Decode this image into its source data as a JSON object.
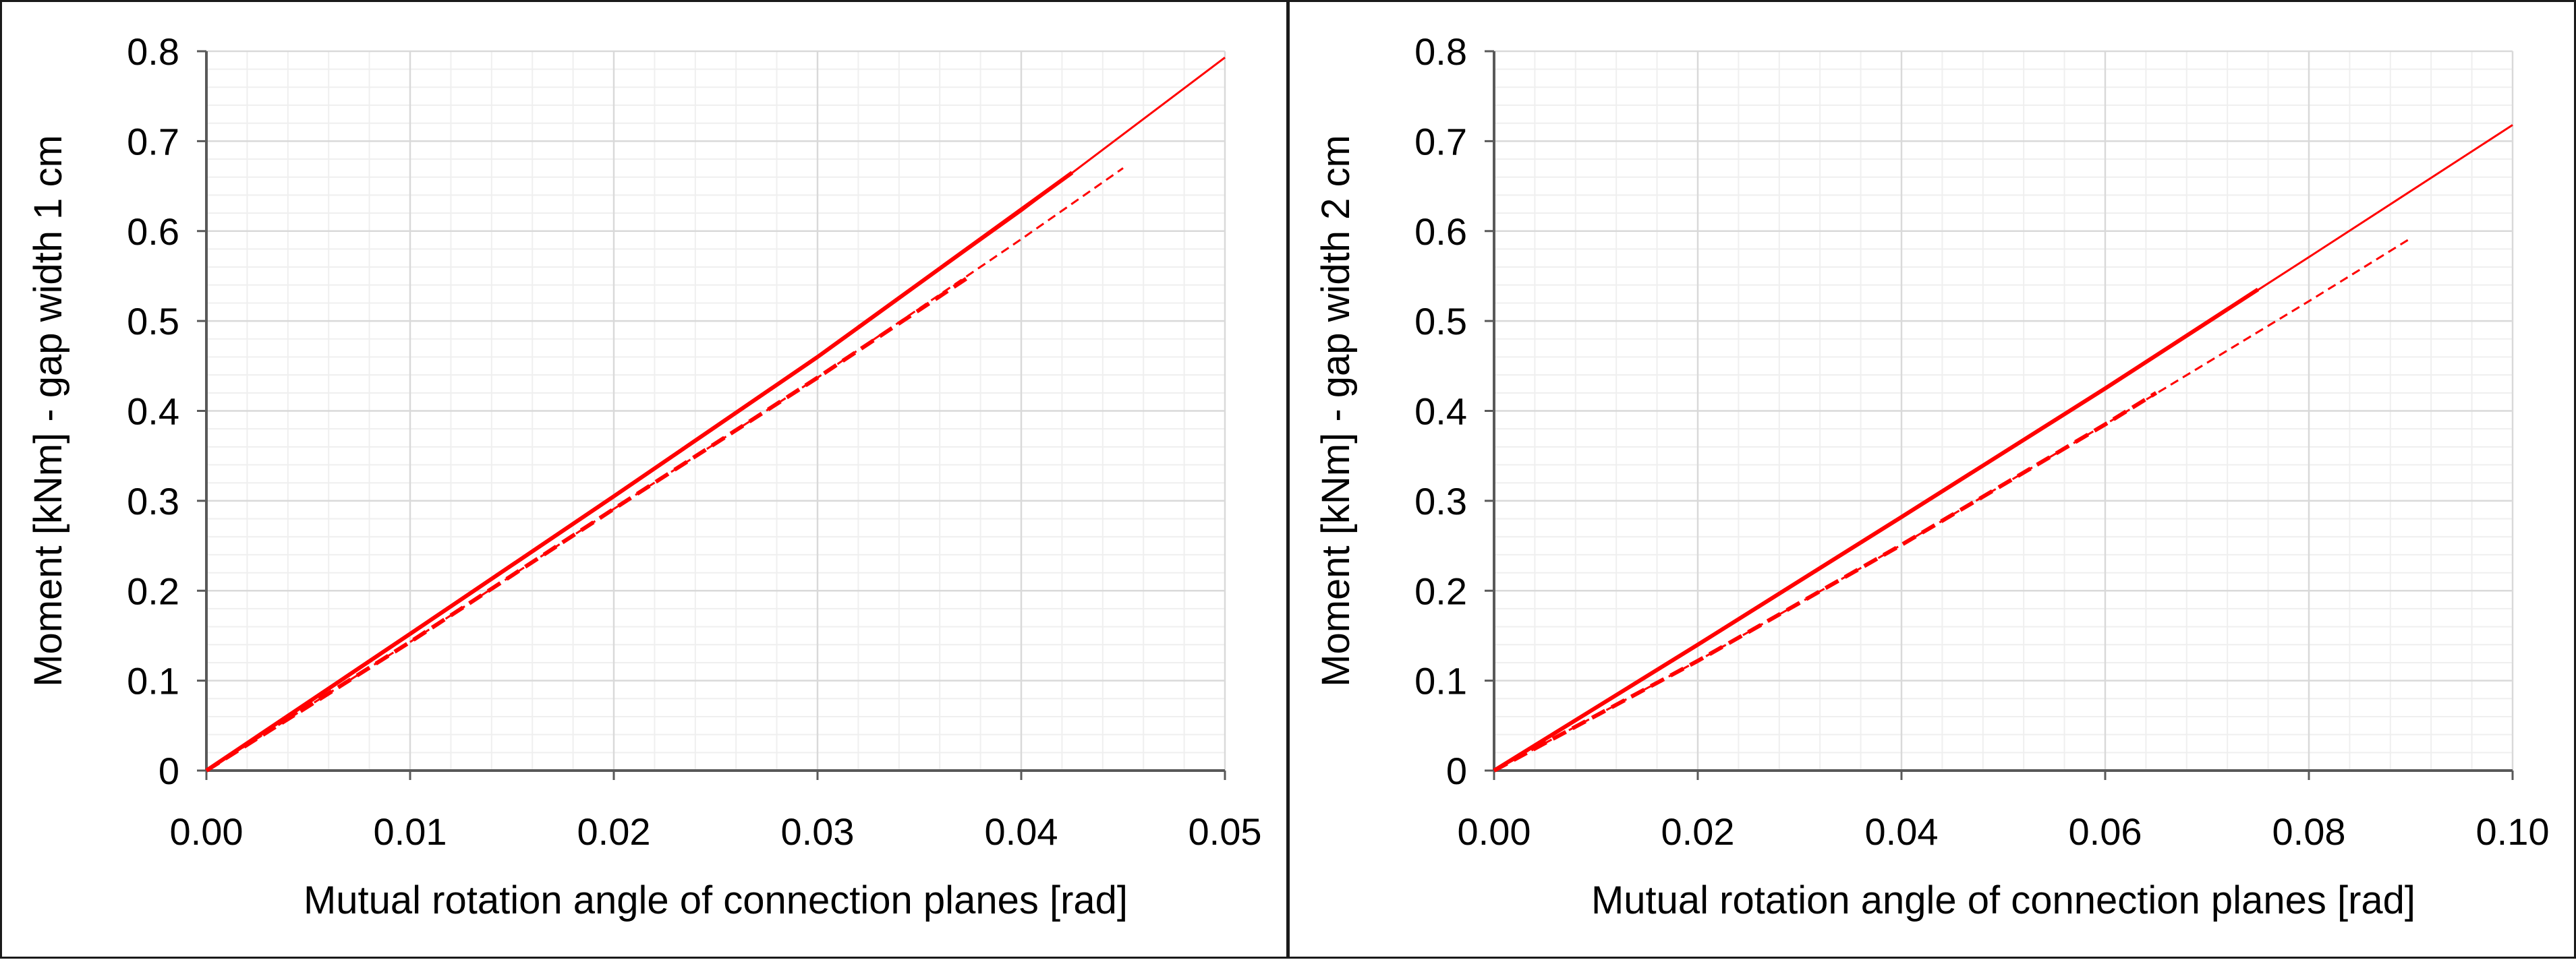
{
  "chart_data": [
    {
      "type": "line",
      "title": "",
      "xlabel": "Mutual rotation angle of connection planes [rad]",
      "ylabel": "Moment [kNm] - gap width 1 cm",
      "xlim": [
        0,
        0.05
      ],
      "ylim": [
        0,
        0.8
      ],
      "x_ticks": [
        "0.00",
        "0.01",
        "0.02",
        "0.03",
        "0.04",
        "0.05"
      ],
      "y_ticks": [
        "0",
        "0.1",
        "0.2",
        "0.3",
        "0.4",
        "0.5",
        "0.6",
        "0.7",
        "0.8"
      ],
      "grid": true,
      "legend": "none",
      "color": "#ff0000",
      "series": [
        {
          "name": "solid-thin",
          "style": "solid",
          "weight": "thin",
          "x": [
            0,
            0.01,
            0.02,
            0.03,
            0.04,
            0.05
          ],
          "y": [
            0,
            0.152,
            0.305,
            0.46,
            0.622,
            0.793
          ]
        },
        {
          "name": "solid-thick",
          "style": "solid",
          "weight": "thick",
          "x": [
            0,
            0.01,
            0.02,
            0.03,
            0.0425
          ],
          "y": [
            0,
            0.152,
            0.305,
            0.46,
            0.665
          ]
        },
        {
          "name": "dashed-thin",
          "style": "dashed",
          "weight": "thin",
          "x": [
            0,
            0.01,
            0.02,
            0.03,
            0.04,
            0.045
          ],
          "y": [
            0,
            0.143,
            0.291,
            0.437,
            0.591,
            0.67
          ]
        },
        {
          "name": "dashed-thick",
          "style": "dashed",
          "weight": "thick",
          "x": [
            0,
            0.01,
            0.02,
            0.03,
            0.0375
          ],
          "y": [
            0,
            0.143,
            0.291,
            0.437,
            0.55
          ]
        }
      ]
    },
    {
      "type": "line",
      "title": "",
      "xlabel": "Mutual rotation angle of connection planes [rad]",
      "ylabel": "Moment [kNm] - gap width 2 cm",
      "xlim": [
        0,
        0.1
      ],
      "ylim": [
        0,
        0.8
      ],
      "x_ticks": [
        "0.00",
        "0.02",
        "0.04",
        "0.06",
        "0.08",
        "0.10"
      ],
      "y_ticks": [
        "0",
        "0.1",
        "0.2",
        "0.3",
        "0.4",
        "0.5",
        "0.6",
        "0.7",
        "0.8"
      ],
      "grid": true,
      "legend": "none",
      "color": "#ff0000",
      "series": [
        {
          "name": "solid-thin",
          "style": "solid",
          "weight": "thin",
          "x": [
            0,
            0.02,
            0.04,
            0.06,
            0.08,
            0.1
          ],
          "y": [
            0,
            0.14,
            0.282,
            0.425,
            0.571,
            0.718
          ]
        },
        {
          "name": "solid-thick",
          "style": "solid",
          "weight": "thick",
          "x": [
            0,
            0.02,
            0.04,
            0.06,
            0.075
          ],
          "y": [
            0,
            0.14,
            0.282,
            0.425,
            0.535
          ]
        },
        {
          "name": "dashed-thin",
          "style": "dashed",
          "weight": "thin",
          "x": [
            0,
            0.02,
            0.04,
            0.06,
            0.08,
            0.09
          ],
          "y": [
            0,
            0.122,
            0.251,
            0.385,
            0.522,
            0.592
          ]
        },
        {
          "name": "dashed-thick",
          "style": "dashed",
          "weight": "thick",
          "x": [
            0,
            0.02,
            0.04,
            0.06,
            0.065
          ],
          "y": [
            0,
            0.122,
            0.251,
            0.385,
            0.42
          ]
        }
      ]
    }
  ]
}
